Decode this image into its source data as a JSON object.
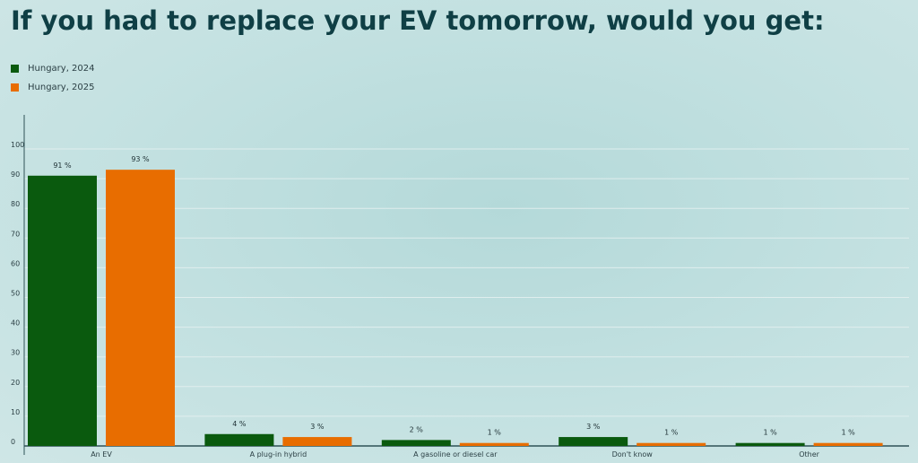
{
  "chart_data": {
    "type": "bar",
    "title": "If you had to replace your EV tomorrow, would you get:",
    "categories": [
      "An EV",
      "A plug-in hybrid",
      "A gasoline or diesel car",
      "Don't know",
      "Other"
    ],
    "series": [
      {
        "name": "Hungary, 2024",
        "color": "#0a5a0e",
        "values": [
          91,
          4,
          2,
          3,
          1
        ],
        "labels": [
          "91 %",
          "4 %",
          "2 %",
          "3 %",
          "1 %"
        ]
      },
      {
        "name": "Hungary, 2025",
        "color": "#e86d00",
        "values": [
          93,
          3,
          1,
          1,
          1
        ],
        "labels": [
          "93 %",
          "3 %",
          "1 %",
          "1 %",
          "1 %"
        ]
      }
    ],
    "yticks": [
      "0",
      "10",
      "20",
      "30",
      "40",
      "50",
      "60",
      "70",
      "80",
      "90",
      "100"
    ],
    "ylim": [
      0,
      100
    ],
    "grid": true,
    "legend_position": "top-left"
  }
}
